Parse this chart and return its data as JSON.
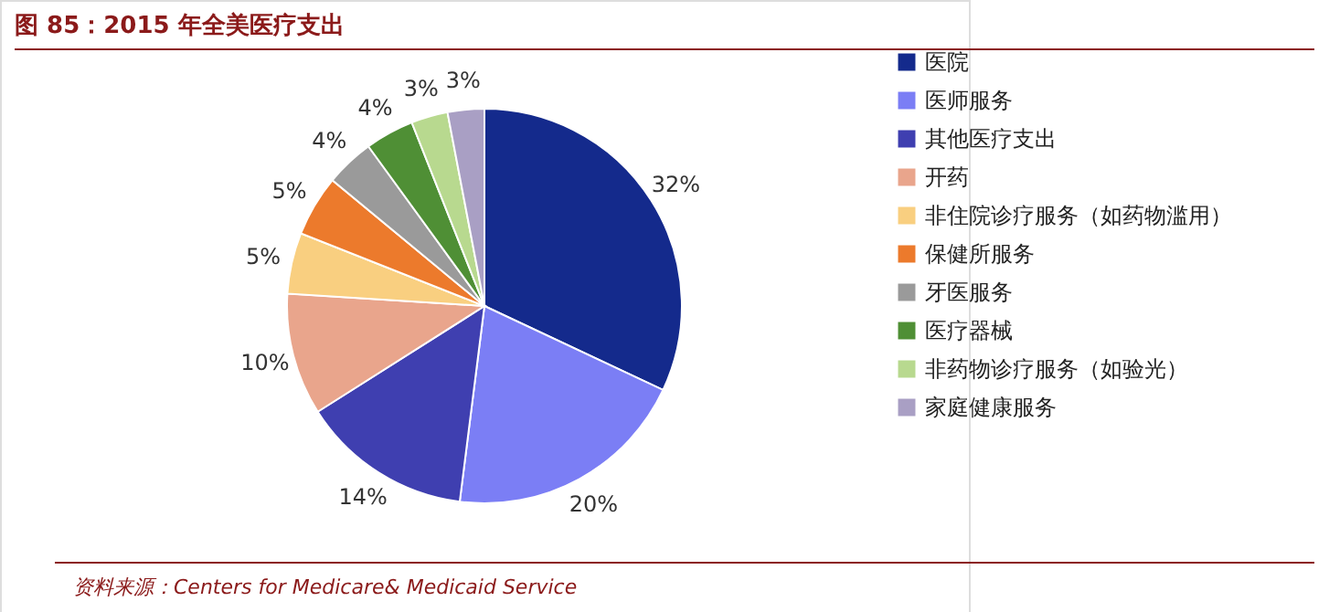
{
  "chart_data": {
    "type": "pie",
    "title": "图 85：2015 年全美医疗支出",
    "categories": [
      "医院",
      "医师服务",
      "其他医疗支出",
      "开药",
      "非住院诊疗服务（如药物滥用）",
      "保健所服务",
      "牙医服务",
      "医疗器械",
      "非药物诊疗服务（如验光）",
      "家庭健康服务"
    ],
    "values": [
      32,
      20,
      14,
      10,
      5,
      5,
      4,
      4,
      3,
      3
    ],
    "colors": [
      "#142a8c",
      "#7b7ef5",
      "#3f3fb0",
      "#e9a58c",
      "#f9cf80",
      "#ec7a2c",
      "#9a9a9a",
      "#4f8f35",
      "#b8d98f",
      "#a99fc4"
    ],
    "value_labels": [
      "32%",
      "20%",
      "14%",
      "10%",
      "5%",
      "5%",
      "4%",
      "4%",
      "3%",
      "3%"
    ],
    "legend": "right",
    "annotations": [
      "资料来源：Centers for Medicare& Medicaid Service"
    ]
  }
}
